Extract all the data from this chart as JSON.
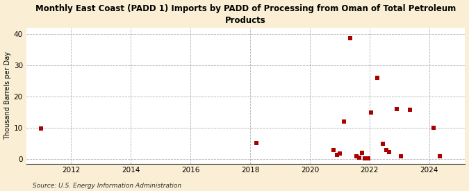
{
  "title": "Monthly East Coast (PADD 1) Imports by PADD of Processing from Oman of Total Petroleum\nProducts",
  "ylabel": "Thousand Barrels per Day",
  "source": "Source: U.S. Energy Information Administration",
  "background_color": "#faefd4",
  "plot_background_color": "#ffffff",
  "marker_color": "#aa0000",
  "marker_size": 16,
  "xlim": [
    2010.5,
    2025.2
  ],
  "ylim": [
    -1.5,
    42
  ],
  "yticks": [
    0,
    10,
    20,
    30,
    40
  ],
  "xticks": [
    2012,
    2014,
    2016,
    2018,
    2020,
    2022,
    2024
  ],
  "data_points": [
    [
      2011.0,
      9.8
    ],
    [
      2018.2,
      5.2
    ],
    [
      2020.8,
      3.0
    ],
    [
      2020.9,
      1.3
    ],
    [
      2021.0,
      1.9
    ],
    [
      2021.15,
      12.0
    ],
    [
      2021.35,
      38.5
    ],
    [
      2021.55,
      0.9
    ],
    [
      2021.65,
      0.6
    ],
    [
      2021.75,
      2.0
    ],
    [
      2021.85,
      0.2
    ],
    [
      2021.95,
      0.2
    ],
    [
      2022.05,
      14.8
    ],
    [
      2022.25,
      26.0
    ],
    [
      2022.45,
      5.0
    ],
    [
      2022.55,
      3.0
    ],
    [
      2022.65,
      2.2
    ],
    [
      2022.9,
      16.0
    ],
    [
      2023.05,
      1.0
    ],
    [
      2023.35,
      15.8
    ],
    [
      2024.15,
      10.0
    ],
    [
      2024.35,
      1.0
    ]
  ]
}
